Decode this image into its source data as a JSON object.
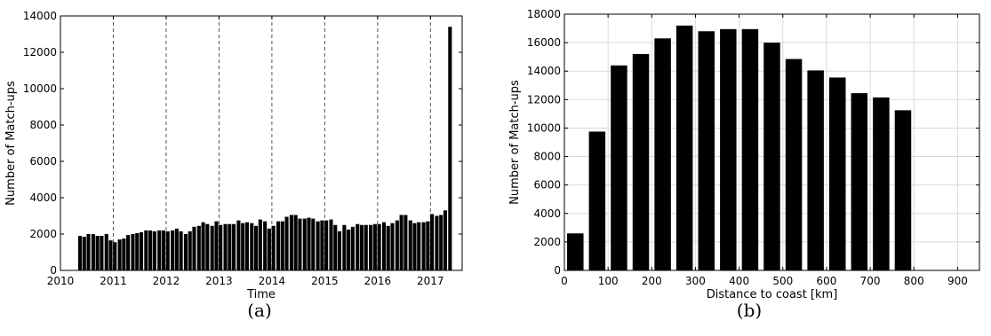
{
  "chart_data": [
    {
      "type": "bar",
      "caption": "(a)",
      "xlabel": "Time",
      "ylabel": "Number of Match-ups",
      "xlim": [
        2010,
        2017.6
      ],
      "ylim": [
        0,
        14000
      ],
      "xticks": [
        2010,
        2011,
        2012,
        2013,
        2014,
        2015,
        2016,
        2017
      ],
      "yticks": [
        0,
        2000,
        4000,
        6000,
        8000,
        10000,
        12000,
        14000
      ],
      "grid": "vertical dashed lines at each year",
      "bar_color": "#000000",
      "series": [
        {
          "x": [
            2010.37,
            2010.45,
            2010.53,
            2010.62,
            2010.7,
            2010.78,
            2010.87,
            2010.95,
            2011.03,
            2011.12,
            2011.2,
            2011.28,
            2011.37,
            2011.45,
            2011.53,
            2011.62,
            2011.7,
            2011.78,
            2011.87,
            2011.95,
            2012.03,
            2012.12,
            2012.2,
            2012.28,
            2012.37,
            2012.45,
            2012.53,
            2012.62,
            2012.7,
            2012.78,
            2012.87,
            2012.95,
            2013.03,
            2013.12,
            2013.2,
            2013.28,
            2013.37,
            2013.45,
            2013.53,
            2013.62,
            2013.7,
            2013.78,
            2013.87,
            2013.95,
            2014.03,
            2014.12,
            2014.2,
            2014.28,
            2014.37,
            2014.45,
            2014.53,
            2014.62,
            2014.7,
            2014.78,
            2014.87,
            2014.95,
            2015.03,
            2015.12,
            2015.2,
            2015.28,
            2015.37,
            2015.45,
            2015.53,
            2015.62,
            2015.7,
            2015.78,
            2015.87,
            2015.95,
            2016.03,
            2016.12,
            2016.2,
            2016.28,
            2016.37,
            2016.45,
            2016.53,
            2016.62,
            2016.7,
            2016.78,
            2016.87,
            2016.95,
            2017.03,
            2017.12,
            2017.2,
            2017.28,
            2017.37
          ],
          "values": [
            1900,
            1850,
            2000,
            2000,
            1900,
            1900,
            2000,
            1650,
            1550,
            1700,
            1750,
            1950,
            2000,
            2050,
            2100,
            2200,
            2200,
            2150,
            2200,
            2200,
            2150,
            2200,
            2300,
            2150,
            2000,
            2150,
            2400,
            2450,
            2650,
            2550,
            2450,
            2700,
            2500,
            2550,
            2550,
            2550,
            2750,
            2600,
            2650,
            2600,
            2450,
            2800,
            2700,
            2300,
            2450,
            2700,
            2700,
            2950,
            3050,
            3050,
            2850,
            2850,
            2900,
            2850,
            2700,
            2750,
            2750,
            2800,
            2500,
            2150,
            2500,
            2250,
            2400,
            2550,
            2500,
            2500,
            2500,
            2550,
            2550,
            2650,
            2450,
            2600,
            2750,
            3050,
            3050,
            2750,
            2600,
            2650,
            2650,
            2700,
            3100,
            3000,
            3050,
            3300,
            13400
          ]
        }
      ]
    },
    {
      "type": "bar",
      "caption": "(b)",
      "xlabel": "Distance to coast [km]",
      "ylabel": "Number of Match-ups",
      "xlim": [
        0,
        950
      ],
      "ylim": [
        0,
        18000
      ],
      "xticks": [
        0,
        100,
        200,
        300,
        400,
        500,
        600,
        700,
        800,
        900
      ],
      "yticks": [
        0,
        2000,
        4000,
        6000,
        8000,
        10000,
        12000,
        14000,
        16000,
        18000
      ],
      "grid": "solid light grid on both axes",
      "bar_color": "#000000",
      "series": [
        {
          "x": [
            25,
            75,
            125,
            175,
            225,
            275,
            325,
            375,
            425,
            475,
            525,
            575,
            625,
            675,
            725,
            775
          ],
          "values": [
            2600,
            9750,
            14400,
            15200,
            16300,
            17200,
            16800,
            16950,
            16950,
            16000,
            14850,
            14050,
            13550,
            12450,
            12150,
            11250
          ]
        }
      ]
    }
  ]
}
